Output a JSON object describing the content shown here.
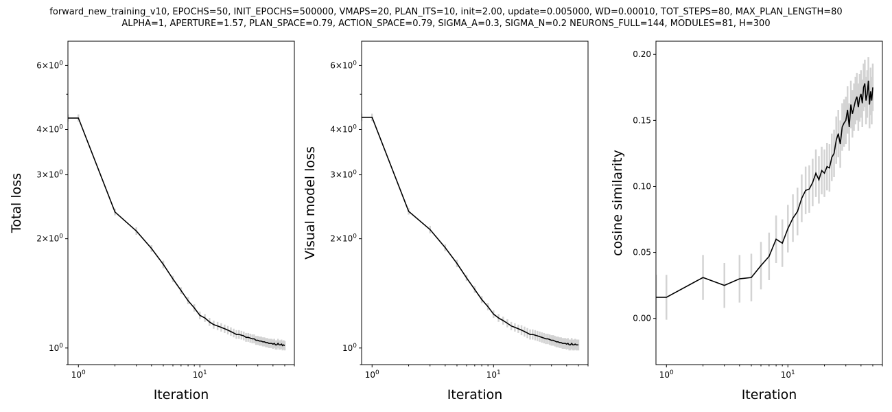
{
  "title_lines": [
    "forward_new_training_v10, EPOCHS=50, INIT_EPOCHS=500000, VMAPS=20, PLAN_ITS=10, init=2.00, update=0.005000, WD=0.00010, TOT_STEPS=80, MAX_PLAN_LENGTH=80",
    "ALPHA=1, APERTURE=1.57, PLAN_SPACE=0.79, ACTION_SPACE=0.79, SIGMA_A=0.3, SIGMA_N=0.2 NEURONS_FULL=144, MODULES=81, H=300"
  ],
  "colors": {
    "line": "#000000",
    "errorbar": "#d3d3d3"
  },
  "chart_data": [
    {
      "type": "line",
      "xlabel": "Iteration",
      "ylabel": "Total loss",
      "xscale": "log",
      "yscale": "log",
      "xlim": [
        0.82,
        60
      ],
      "ylim": [
        0.9,
        7.0
      ],
      "xticks": [
        {
          "value": 1,
          "label": "10^0"
        },
        {
          "value": 10,
          "label": "10^1"
        }
      ],
      "yticks": [
        {
          "value": 1,
          "label": "10^0"
        },
        {
          "value": 2,
          "label": "2×10^0"
        },
        {
          "value": 3,
          "label": "3×10^0"
        },
        {
          "value": 4,
          "label": "4×10^0"
        },
        {
          "value": 6,
          "label": "6×10^0"
        }
      ],
      "y_minor_ticks": [
        5
      ],
      "series": [
        {
          "x": [
            0,
            1,
            2,
            3,
            4,
            5,
            6,
            7,
            8,
            9,
            10,
            11,
            12,
            13,
            14,
            15,
            16,
            17,
            18,
            19,
            20,
            21,
            22,
            23,
            24,
            25,
            26,
            27,
            28,
            29,
            30,
            31,
            32,
            33,
            34,
            35,
            36,
            37,
            38,
            39,
            40,
            41,
            42,
            43,
            44,
            45,
            46,
            47,
            48,
            49,
            50
          ],
          "y": [
            4.3,
            4.3,
            2.37,
            2.1,
            1.88,
            1.7,
            1.55,
            1.44,
            1.35,
            1.29,
            1.23,
            1.21,
            1.18,
            1.16,
            1.15,
            1.14,
            1.13,
            1.12,
            1.11,
            1.1,
            1.09,
            1.09,
            1.085,
            1.08,
            1.07,
            1.07,
            1.065,
            1.06,
            1.06,
            1.05,
            1.05,
            1.045,
            1.045,
            1.04,
            1.04,
            1.035,
            1.035,
            1.03,
            1.03,
            1.03,
            1.025,
            1.03,
            1.02,
            1.02,
            1.03,
            1.02,
            1.02,
            1.025,
            1.015,
            1.02,
            1.015
          ],
          "err": [
            0.1,
            0.1,
            0.05,
            0.05,
            0.04,
            0.04,
            0.03,
            0.03,
            0.03,
            0.03,
            0.03,
            0.03,
            0.03,
            0.03,
            0.03,
            0.03,
            0.03,
            0.03,
            0.03,
            0.03,
            0.03,
            0.03,
            0.03,
            0.03,
            0.03,
            0.03,
            0.03,
            0.03,
            0.03,
            0.03,
            0.03,
            0.03,
            0.03,
            0.03,
            0.03,
            0.03,
            0.03,
            0.03,
            0.03,
            0.03,
            0.03,
            0.03,
            0.03,
            0.03,
            0.03,
            0.03,
            0.03,
            0.03,
            0.03,
            0.03,
            0.03
          ]
        }
      ]
    },
    {
      "type": "line",
      "xlabel": "Iteration",
      "ylabel": "Visual model loss",
      "xscale": "log",
      "yscale": "log",
      "xlim": [
        0.82,
        60
      ],
      "ylim": [
        0.9,
        7.0
      ],
      "xticks": [
        {
          "value": 1,
          "label": "10^0"
        },
        {
          "value": 10,
          "label": "10^1"
        }
      ],
      "yticks": [
        {
          "value": 1,
          "label": "10^0"
        },
        {
          "value": 2,
          "label": "2×10^0"
        },
        {
          "value": 3,
          "label": "3×10^0"
        },
        {
          "value": 4,
          "label": "4×10^0"
        },
        {
          "value": 6,
          "label": "6×10^0"
        }
      ],
      "y_minor_ticks": [
        5
      ],
      "series": [
        {
          "x": [
            0,
            1,
            2,
            3,
            4,
            5,
            6,
            7,
            8,
            9,
            10,
            11,
            12,
            13,
            14,
            15,
            16,
            17,
            18,
            19,
            20,
            21,
            22,
            23,
            24,
            25,
            26,
            27,
            28,
            29,
            30,
            31,
            32,
            33,
            34,
            35,
            36,
            37,
            38,
            39,
            40,
            41,
            42,
            43,
            44,
            45,
            46,
            47,
            48,
            49,
            50
          ],
          "y": [
            4.32,
            4.32,
            2.38,
            2.12,
            1.89,
            1.71,
            1.56,
            1.45,
            1.36,
            1.3,
            1.24,
            1.21,
            1.19,
            1.17,
            1.15,
            1.14,
            1.13,
            1.12,
            1.11,
            1.1,
            1.09,
            1.09,
            1.085,
            1.08,
            1.075,
            1.07,
            1.065,
            1.06,
            1.06,
            1.055,
            1.05,
            1.05,
            1.045,
            1.04,
            1.04,
            1.035,
            1.035,
            1.03,
            1.03,
            1.03,
            1.025,
            1.03,
            1.02,
            1.02,
            1.03,
            1.02,
            1.02,
            1.025,
            1.02,
            1.02,
            1.02
          ],
          "err": [
            0.1,
            0.1,
            0.05,
            0.05,
            0.04,
            0.04,
            0.03,
            0.03,
            0.03,
            0.03,
            0.03,
            0.03,
            0.03,
            0.03,
            0.03,
            0.03,
            0.03,
            0.035,
            0.035,
            0.035,
            0.035,
            0.035,
            0.035,
            0.035,
            0.035,
            0.035,
            0.035,
            0.035,
            0.035,
            0.035,
            0.035,
            0.035,
            0.035,
            0.035,
            0.035,
            0.035,
            0.035,
            0.035,
            0.035,
            0.035,
            0.035,
            0.035,
            0.035,
            0.035,
            0.035,
            0.035,
            0.035,
            0.035,
            0.035,
            0.035,
            0.035
          ]
        }
      ]
    },
    {
      "type": "line",
      "xlabel": "Iteration",
      "ylabel": "cosine similarity",
      "xscale": "log",
      "yscale": "linear",
      "xlim": [
        0.82,
        60
      ],
      "ylim": [
        -0.035,
        0.21
      ],
      "xticks": [
        {
          "value": 1,
          "label": "10^0"
        },
        {
          "value": 10,
          "label": "10^1"
        }
      ],
      "yticks": [
        {
          "value": 0.0,
          "label": "0.00"
        },
        {
          "value": 0.05,
          "label": "0.05"
        },
        {
          "value": 0.1,
          "label": "0.10"
        },
        {
          "value": 0.15,
          "label": "0.15"
        },
        {
          "value": 0.2,
          "label": "0.20"
        }
      ],
      "series": [
        {
          "x": [
            0,
            1,
            2,
            3,
            4,
            5,
            6,
            7,
            8,
            9,
            10,
            11,
            12,
            13,
            14,
            15,
            16,
            17,
            18,
            19,
            20,
            21,
            22,
            23,
            24,
            25,
            26,
            27,
            28,
            29,
            30,
            31,
            32,
            33,
            34,
            35,
            36,
            37,
            38,
            39,
            40,
            41,
            42,
            43,
            44,
            45,
            46,
            47,
            48,
            49,
            50
          ],
          "y": [
            0.016,
            0.016,
            0.031,
            0.025,
            0.03,
            0.031,
            0.04,
            0.047,
            0.06,
            0.057,
            0.068,
            0.076,
            0.081,
            0.091,
            0.097,
            0.098,
            0.103,
            0.11,
            0.105,
            0.112,
            0.11,
            0.115,
            0.114,
            0.122,
            0.125,
            0.135,
            0.14,
            0.132,
            0.145,
            0.148,
            0.15,
            0.158,
            0.145,
            0.162,
            0.155,
            0.16,
            0.165,
            0.168,
            0.16,
            0.167,
            0.17,
            0.163,
            0.175,
            0.178,
            0.165,
            0.17,
            0.18,
            0.162,
            0.172,
            0.165,
            0.175
          ],
          "err": [
            0.017,
            0.017,
            0.017,
            0.017,
            0.018,
            0.018,
            0.018,
            0.018,
            0.018,
            0.018,
            0.018,
            0.018,
            0.018,
            0.018,
            0.018,
            0.018,
            0.018,
            0.018,
            0.018,
            0.018,
            0.018,
            0.018,
            0.018,
            0.018,
            0.018,
            0.018,
            0.018,
            0.018,
            0.018,
            0.018,
            0.018,
            0.018,
            0.018,
            0.018,
            0.018,
            0.018,
            0.018,
            0.018,
            0.018,
            0.018,
            0.018,
            0.018,
            0.018,
            0.018,
            0.018,
            0.018,
            0.018,
            0.018,
            0.018,
            0.018,
            0.018
          ]
        }
      ]
    }
  ]
}
